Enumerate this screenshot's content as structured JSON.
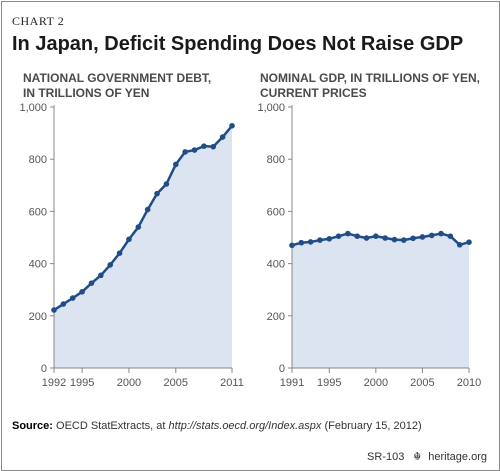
{
  "header": {
    "chart_label": "CHART 2",
    "title": "In Japan, Deficit Spending Does Not Raise GDP"
  },
  "footer": {
    "source_label": "Source:",
    "source_prefix": "OECD StatExtracts, at ",
    "source_url": "http://stats.oecd.org/Index.aspx",
    "source_suffix": " (February 15, 2012)",
    "report_id": "SR-103",
    "site": "heritage.org"
  },
  "colors": {
    "line": "#1f4e87",
    "fill": "#dce3f1",
    "axis": "#888888",
    "tick_text": "#555555"
  },
  "chart_data": [
    {
      "type": "area",
      "title": "NATIONAL GOVERNMENT DEBT,",
      "subtitle": "IN TRILLIONS OF YEN",
      "xlim": [
        1992,
        2011
      ],
      "ylim": [
        0,
        1000
      ],
      "yticks": [
        0,
        200,
        400,
        600,
        800,
        1000
      ],
      "yticklabels": [
        "0",
        "200",
        "400",
        "600",
        "800",
        "1,000"
      ],
      "xticks": [
        1992,
        1995,
        2000,
        2005,
        2011
      ],
      "xticklabels": [
        "1992",
        "1995",
        "2000",
        "2005",
        "2011"
      ],
      "grid": false,
      "x": [
        1992,
        1993,
        1994,
        1995,
        1996,
        1997,
        1998,
        1999,
        2000,
        2001,
        2002,
        2003,
        2004,
        2005,
        2006,
        2007,
        2008,
        2009,
        2010,
        2011
      ],
      "values": [
        222,
        245,
        268,
        292,
        325,
        355,
        395,
        440,
        493,
        540,
        607,
        668,
        705,
        780,
        828,
        835,
        850,
        848,
        885,
        928
      ]
    },
    {
      "type": "area",
      "title": "NOMINAL GDP, IN TRILLIONS OF YEN,",
      "subtitle": "CURRENT PRICES",
      "xlim": [
        1991,
        2010
      ],
      "ylim": [
        0,
        1000
      ],
      "yticks": [
        0,
        200,
        400,
        600,
        800,
        1000
      ],
      "yticklabels": [
        "0",
        "200",
        "400",
        "600",
        "800",
        "1,000"
      ],
      "xticks": [
        1991,
        1995,
        2000,
        2005,
        2010
      ],
      "xticklabels": [
        "1991",
        "1995",
        "2000",
        "2005",
        "2010"
      ],
      "grid": false,
      "x": [
        1991,
        1992,
        1993,
        1994,
        1995,
        1996,
        1997,
        1998,
        1999,
        2000,
        2001,
        2002,
        2003,
        2004,
        2005,
        2006,
        2007,
        2008,
        2009,
        2010
      ],
      "values": [
        470,
        480,
        483,
        490,
        495,
        505,
        515,
        505,
        498,
        505,
        498,
        492,
        490,
        497,
        502,
        508,
        515,
        505,
        472,
        482
      ]
    }
  ]
}
